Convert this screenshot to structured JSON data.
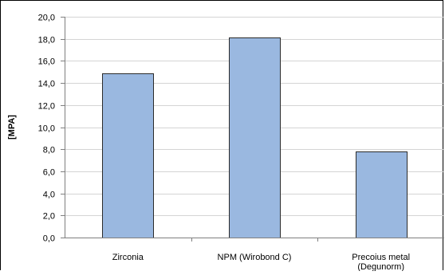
{
  "chart_data": {
    "type": "bar",
    "categories": [
      "Zirconia",
      "NPM (Wirobond C)",
      "Precoius metal (Degunorm)"
    ],
    "category_lines": [
      [
        "Zirconia"
      ],
      [
        "NPM (Wirobond C)"
      ],
      [
        "Precoius metal",
        "(Degunorm)"
      ]
    ],
    "values": [
      14.9,
      18.1,
      7.8
    ],
    "ylabel": "[MPA]",
    "xlabel": "",
    "title": "",
    "ylim": [
      0,
      20
    ],
    "ytick_step": 2,
    "ytick_labels": [
      "0,0",
      "2,0",
      "4,0",
      "6,0",
      "8,0",
      "10,0",
      "12,0",
      "14,0",
      "16,0",
      "18,0",
      "20,0"
    ],
    "grid": true,
    "legend": "none",
    "colors": {
      "bar_fill": "#9ab8e0",
      "bar_stroke": "#2b2b2b",
      "grid": "#d4d4d4",
      "axis": "#7f7f7f",
      "text": "#000000",
      "border": "#000000"
    }
  }
}
